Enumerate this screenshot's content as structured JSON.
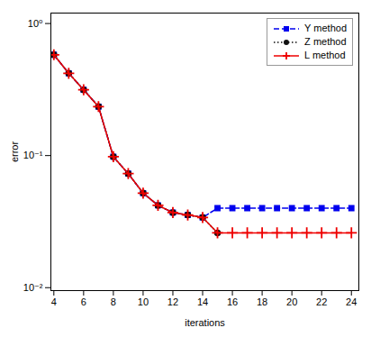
{
  "chart_data": {
    "type": "line",
    "xlabel": "iterations",
    "ylabel": "error",
    "log": "y",
    "grid": false,
    "legend": "upper right",
    "xlim": [
      3.8,
      24.5
    ],
    "ylim": [
      0.0095,
      1.2
    ],
    "xticks": [
      4,
      6,
      8,
      10,
      12,
      14,
      16,
      18,
      20,
      22,
      24
    ],
    "yticks": [
      {
        "value": 0.01,
        "label": "10⁻²"
      },
      {
        "value": 0.1,
        "label": "10⁻¹"
      },
      {
        "value": 1,
        "label": "10⁰"
      }
    ],
    "series": [
      {
        "name": "Y method",
        "color": "#0000ee",
        "marker": "square",
        "line_style": "dashed",
        "x": [
          4,
          5,
          6,
          7,
          8,
          9,
          10,
          11,
          12,
          13,
          14,
          15,
          16,
          17,
          18,
          19,
          20,
          21,
          22,
          23,
          24
        ],
        "values": [
          0.58,
          0.42,
          0.315,
          0.235,
          0.098,
          0.073,
          0.052,
          0.042,
          0.037,
          0.0355,
          0.034,
          0.04,
          0.04,
          0.04,
          0.04,
          0.04,
          0.04,
          0.04,
          0.04,
          0.04,
          0.04
        ]
      },
      {
        "name": "Z method",
        "color": "#111111",
        "marker": "circle",
        "line_style": "dotted",
        "x": [
          4,
          5,
          6,
          7,
          8,
          9,
          10,
          11,
          12,
          13,
          14,
          15
        ],
        "values": [
          0.58,
          0.42,
          0.315,
          0.235,
          0.098,
          0.073,
          0.052,
          0.042,
          0.037,
          0.0355,
          0.034,
          0.026
        ]
      },
      {
        "name": "L method",
        "color": "#ee0000",
        "marker": "plus",
        "line_style": "solid",
        "x": [
          4,
          5,
          6,
          7,
          8,
          9,
          10,
          11,
          12,
          13,
          14,
          15,
          16,
          17,
          18,
          19,
          20,
          21,
          22,
          23,
          24
        ],
        "values": [
          0.58,
          0.42,
          0.315,
          0.235,
          0.098,
          0.073,
          0.052,
          0.042,
          0.037,
          0.0355,
          0.034,
          0.026,
          0.026,
          0.026,
          0.026,
          0.026,
          0.026,
          0.026,
          0.026,
          0.026,
          0.026
        ]
      }
    ]
  }
}
